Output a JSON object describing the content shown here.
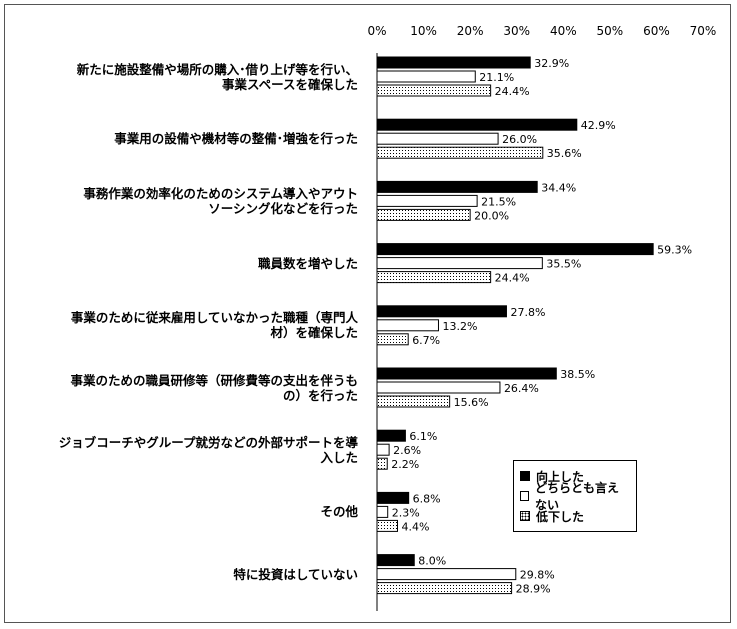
{
  "chart_data": {
    "type": "bar",
    "orientation": "horizontal",
    "categories": [
      "新たに施設整備や場所の購入･借り上げ等を行い、事業スペースを確保した",
      "事業用の設備や機材等の整備･増強を行った",
      "事務作業の効率化のためのシステム導入やアウトソーシング化などを行った",
      "職員数を増やした",
      "事業のために従来雇用していなかった職種（専門人材）を確保した",
      "事業のための職員研修等（研修費等の支出を伴うもの）を行った",
      "ジョブコーチやグループ就労などの外部サポートを導入した",
      "その他",
      "特に投資はしていない"
    ],
    "series": [
      {
        "name": "向上した",
        "values": [
          32.9,
          42.9,
          34.4,
          59.3,
          27.8,
          38.5,
          6.1,
          6.8,
          8.0
        ],
        "labels": [
          "32.9%",
          "42.9%",
          "34.4%",
          "59.3%",
          "27.8%",
          "38.5%",
          "6.1%",
          "6.8%",
          "8.0%"
        ]
      },
      {
        "name": "どちらとも言えない",
        "values": [
          21.1,
          26.0,
          21.5,
          35.5,
          13.2,
          26.4,
          2.6,
          2.3,
          29.8
        ],
        "labels": [
          "21.1%",
          "26.0%",
          "21.5%",
          "35.5%",
          "13.2%",
          "26.4%",
          "2.6%",
          "2.3%",
          "29.8%"
        ]
      },
      {
        "name": "低下した",
        "values": [
          24.4,
          35.6,
          20.0,
          24.4,
          6.7,
          15.6,
          2.2,
          4.4,
          28.9
        ],
        "labels": [
          "24.4%",
          "35.6%",
          "20.0%",
          "24.4%",
          "6.7%",
          "15.6%",
          "2.2%",
          "4.4%",
          "28.9%"
        ]
      }
    ],
    "xlim": [
      0,
      70
    ],
    "xticks": [
      "0%",
      "10%",
      "20%",
      "30%",
      "40%",
      "50%",
      "60%",
      "70%"
    ],
    "legend_position": "bottom-right",
    "grid": false
  },
  "category_lines": [
    [
      "新たに施設整備や場所の購入･借り上げ等を行い、",
      "事業スペースを確保した"
    ],
    [
      "事業用の設備や機材等の整備･増強を行った"
    ],
    [
      "事務作業の効率化のためのシステム導入やアウト",
      "ソーシング化などを行った"
    ],
    [
      "職員数を増やした"
    ],
    [
      "事業のために従来雇用していなかった職種（専門人",
      "材）を確保した"
    ],
    [
      "事業のための職員研修等（研修費等の支出を伴うも",
      "の）を行った"
    ],
    [
      "ジョブコーチやグループ就労などの外部サポートを導",
      "入した"
    ],
    [
      "その他"
    ],
    [
      "特に投資はしていない"
    ]
  ],
  "colors": {
    "series_0": "#000000",
    "series_1": "#ffffff",
    "series_2": "dotted",
    "axis": "#000000"
  }
}
